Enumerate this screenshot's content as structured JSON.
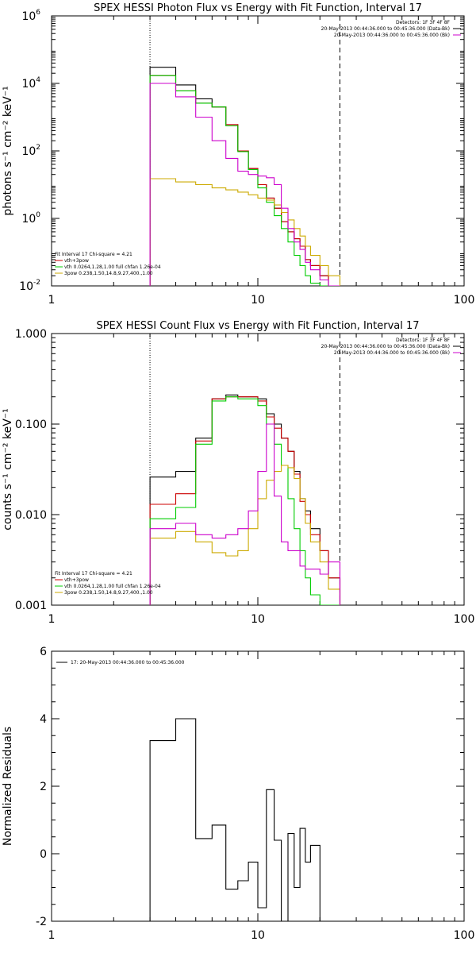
{
  "colors": {
    "black": "#000000",
    "red": "#cc0000",
    "green": "#00cc00",
    "magenta": "#cc00cc",
    "yellow": "#ccaa00"
  },
  "chart_data": [
    {
      "type": "line",
      "title": "SPEX HESSI Photon Flux vs Energy with Fit Function, Interval 17",
      "ylabel": "photons s⁻¹ cm⁻² keV⁻¹",
      "xlabel": "",
      "xscale": "log",
      "yscale": "log",
      "xlim": [
        1,
        100
      ],
      "ylim": [
        0.01,
        1000000
      ],
      "xticks": [
        {
          "v": 1,
          "label": "1"
        },
        {
          "v": 10,
          "label": "10"
        },
        {
          "v": 100,
          "label": "100"
        }
      ],
      "yticks": [
        {
          "v": 0.01,
          "label": "10",
          "exp": "-2"
        },
        {
          "v": 1,
          "label": "10",
          "exp": "0"
        },
        {
          "v": 100,
          "label": "10",
          "exp": "2"
        },
        {
          "v": 10000,
          "label": "10",
          "exp": "4"
        },
        {
          "v": 1000000,
          "label": "10",
          "exp": "6"
        }
      ],
      "vlines": [
        {
          "x": 3,
          "style": "dotted"
        },
        {
          "x": 25,
          "style": "dashed"
        }
      ],
      "top_legend": [
        "Detectors: 1F 3F 4F 8F",
        "20-May-2013 00:44:36.000 to 00:45:36.000 (Data-Bk)",
        "20-May-2013 00:44:36.000 to 00:45:36.000 (Bk)"
      ],
      "top_legend_colors": [
        "#000000",
        "#000000",
        "#cc00cc"
      ],
      "fit_legend": [
        "Fit Interval 17    Chi-square = 4.21",
        "vth+3pow",
        "vth 0.0264,1.28,1.00  full chfan 1.26e-04",
        "3pow 0.238,1.50,14.8,9.27,400.,1.00"
      ],
      "fit_legend_colors": [
        "#000000",
        "#cc0000",
        "#00cc00",
        "#ccaa00"
      ],
      "edges": [
        3,
        4,
        5,
        6,
        7,
        8,
        9,
        10,
        11,
        12,
        13,
        14,
        15,
        16,
        17,
        18,
        20,
        22,
        25
      ],
      "series": [
        {
          "name": "vth+3pow",
          "color": "#000000",
          "values": [
            30000,
            9000,
            3500,
            2000,
            600,
            100,
            30,
            10,
            4,
            2,
            0.8,
            0.4,
            0.25,
            0.15,
            0.06,
            0.04,
            0.02,
            0.01
          ]
        },
        {
          "name": "vth+3pow",
          "color": "#cc0000",
          "values": [
            17000,
            6000,
            2600,
            2000,
            600,
            100,
            30,
            10,
            4,
            2,
            0.8,
            0.4,
            0.25,
            0.15,
            0.06,
            0.04,
            0.02,
            0.01
          ]
        },
        {
          "name": "vth",
          "color": "#00cc00",
          "values": [
            17000,
            6000,
            2600,
            2000,
            550,
            95,
            28,
            8,
            3,
            1.2,
            0.5,
            0.2,
            0.08,
            0.04,
            0.02,
            0.012,
            0.01,
            0.01
          ]
        },
        {
          "name": "3pow",
          "color": "#ccaa00",
          "values": [
            15,
            12,
            10,
            8,
            7,
            6,
            5,
            4,
            3.5,
            2.5,
            1.5,
            0.9,
            0.5,
            0.3,
            0.15,
            0.08,
            0.04,
            0.02
          ]
        },
        {
          "name": "Bk",
          "color": "#cc00cc",
          "values": [
            10000,
            4000,
            1000,
            200,
            60,
            25,
            20,
            18,
            16,
            10,
            2,
            0.5,
            0.2,
            0.12,
            0.05,
            0.03,
            0.015,
            0.01
          ]
        }
      ]
    },
    {
      "type": "line",
      "title": "SPEX HESSI Count Flux vs Energy with Fit Function, Interval 17",
      "ylabel": "counts s⁻¹ cm⁻² keV⁻¹",
      "xlabel": "",
      "xscale": "log",
      "yscale": "log",
      "xlim": [
        1,
        100
      ],
      "ylim": [
        0.001,
        1
      ],
      "xticks": [
        {
          "v": 1,
          "label": "1"
        },
        {
          "v": 10,
          "label": "10"
        },
        {
          "v": 100,
          "label": "100"
        }
      ],
      "yticks": [
        {
          "v": 0.001,
          "label": "0.001"
        },
        {
          "v": 0.01,
          "label": "0.010"
        },
        {
          "v": 0.1,
          "label": "0.100"
        },
        {
          "v": 1,
          "label": "1.000"
        }
      ],
      "vlines": [
        {
          "x": 3,
          "style": "dotted"
        },
        {
          "x": 25,
          "style": "dashed"
        }
      ],
      "top_legend": [
        "Detectors: 1F 3F 4F 8F",
        "20-May-2013 00:44:36.000 to 00:45:36.000 (Data-Bk)",
        "20-May-2013 00:44:36.000 to 00:45:36.000 (Bk)"
      ],
      "top_legend_colors": [
        "#000000",
        "#000000",
        "#cc00cc"
      ],
      "fit_legend": [
        "Fit Interval 17    Chi-square = 4.21",
        "vth+3pow",
        "vth 0.0264,1.28,1.00  full chfan 1.26e-04",
        "3pow 0.238,1.50,14.8,9.27,400.,1.00"
      ],
      "fit_legend_colors": [
        "#000000",
        "#cc0000",
        "#00cc00",
        "#ccaa00"
      ],
      "edges": [
        3,
        4,
        5,
        6,
        7,
        8,
        9,
        10,
        11,
        12,
        13,
        14,
        15,
        16,
        17,
        18,
        20,
        22,
        25
      ],
      "series": [
        {
          "name": "vth+3pow",
          "color": "#000000",
          "values": [
            0.026,
            0.03,
            0.07,
            0.19,
            0.21,
            0.2,
            0.2,
            0.19,
            0.13,
            0.1,
            0.07,
            0.05,
            0.03,
            0.015,
            0.011,
            0.007,
            0.004,
            0.002
          ]
        },
        {
          "name": "vth+3pow",
          "color": "#cc0000",
          "values": [
            0.013,
            0.017,
            0.065,
            0.19,
            0.2,
            0.2,
            0.2,
            0.18,
            0.12,
            0.09,
            0.07,
            0.05,
            0.028,
            0.014,
            0.01,
            0.006,
            0.004,
            0.002
          ]
        },
        {
          "name": "vth",
          "color": "#00cc00",
          "values": [
            0.009,
            0.012,
            0.06,
            0.18,
            0.2,
            0.19,
            0.19,
            0.16,
            0.1,
            0.06,
            0.035,
            0.015,
            0.007,
            0.004,
            0.002,
            0.0013,
            0.001,
            0.001
          ]
        },
        {
          "name": "3pow",
          "color": "#ccaa00",
          "values": [
            0.0055,
            0.0065,
            0.005,
            0.0038,
            0.0035,
            0.004,
            0.007,
            0.015,
            0.024,
            0.03,
            0.035,
            0.033,
            0.025,
            0.015,
            0.008,
            0.005,
            0.003,
            0.0015
          ]
        },
        {
          "name": "Bk",
          "color": "#cc00cc",
          "values": [
            0.007,
            0.008,
            0.006,
            0.0055,
            0.006,
            0.007,
            0.011,
            0.03,
            0.1,
            0.016,
            0.005,
            0.004,
            0.004,
            0.0027,
            0.0025,
            0.0025,
            0.0022,
            0.003
          ]
        }
      ]
    },
    {
      "type": "line",
      "title": "",
      "ylabel": "Normalized Residuals",
      "xlabel": "",
      "xscale": "log",
      "yscale": "linear",
      "xlim": [
        1,
        100
      ],
      "ylim": [
        -2,
        6
      ],
      "xticks": [
        {
          "v": 1,
          "label": "1"
        },
        {
          "v": 10,
          "label": "10"
        },
        {
          "v": 100,
          "label": "100"
        }
      ],
      "yticks": [
        {
          "v": -2,
          "label": "-2"
        },
        {
          "v": 0,
          "label": "0"
        },
        {
          "v": 2,
          "label": "2"
        },
        {
          "v": 4,
          "label": "4"
        },
        {
          "v": 6,
          "label": "6"
        }
      ],
      "vlines": [],
      "legend": [
        "17: 20-May-2013 00:44:36.000 to 00:45:36.000"
      ],
      "edges": [
        3,
        4,
        5,
        6,
        7,
        8,
        9,
        10,
        11,
        12,
        13,
        14,
        15,
        16,
        17,
        18,
        20,
        22,
        25
      ],
      "series": [
        {
          "name": "17: 20-May-2013 00:44:36.000 to 00:45:36.000",
          "color": "#000000",
          "values": [
            3.35,
            4.0,
            0.45,
            0.85,
            -1.05,
            -0.8,
            -0.25,
            -1.6,
            1.9,
            0.4,
            -2.0,
            0.6,
            -1.0,
            0.75,
            -0.25,
            0.25,
            -2.0,
            -2.0
          ]
        }
      ]
    }
  ]
}
